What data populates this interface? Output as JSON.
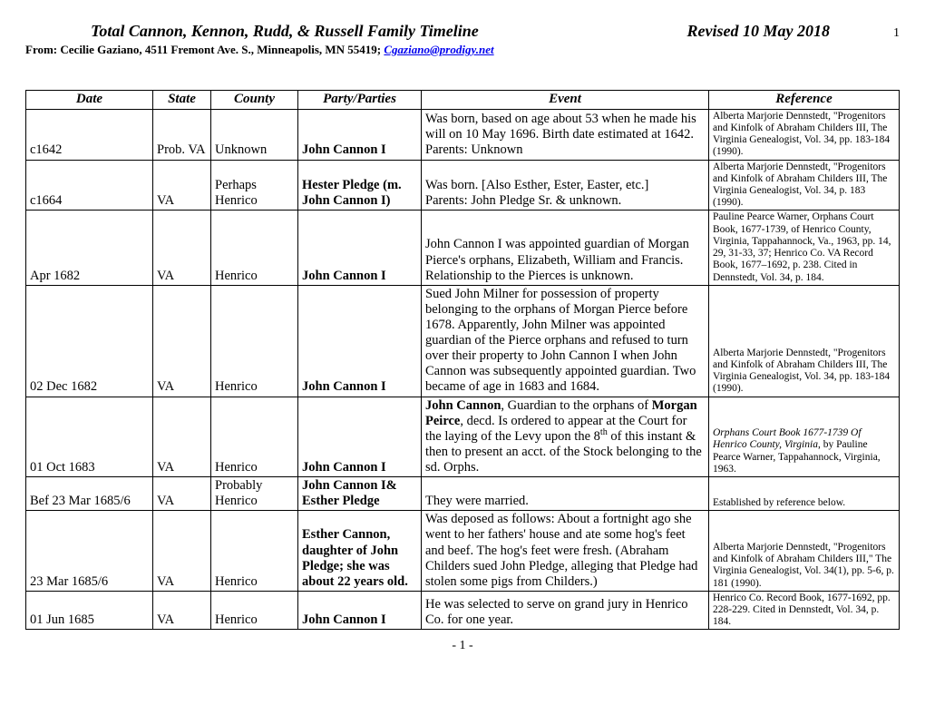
{
  "header": {
    "title": "Total Cannon, Kennon, Rudd, & Russell Family Timeline",
    "revised": "Revised 10 May 2018",
    "page_top": "1",
    "from_prefix": "From:  Cecilie Gaziano, 4511 Fremont Ave. S., Minneapolis, MN 55419; ",
    "from_email": "Cgaziano@prodigy.net"
  },
  "columns": [
    "Date",
    "State",
    "County",
    "Party/Parties",
    "Event",
    "Reference"
  ],
  "rows": [
    {
      "date": "c1642",
      "state": "Prob. VA",
      "county": "Unknown",
      "party_html": "<span class='b'>John Cannon I</span>",
      "event_html": "Was born, based on age about 53 when he made his will on 10 May 1696.  Birth date estimated at 1642.  Parents:  Unknown",
      "ref_html": "Alberta Marjorie Dennstedt, \"Progenitors and Kinfolk of Abraham Childers III, The Virginia Genealogist, Vol. 34, pp. 183-184 (1990)."
    },
    {
      "date": "c1664",
      "state": "VA",
      "county": "Perhaps Henrico",
      "party_html": "<span class='b'>Hester Pledge (m. John Cannon I)</span>",
      "event_html": "Was born. [Also Esther, Ester, Easter, etc.]<br>Parents: John Pledge Sr. &amp; unknown.",
      "ref_html": "Alberta Marjorie Dennstedt, \"Progenitors and Kinfolk of Abraham Childers III, The Virginia Genealogist, Vol. 34, p. 183 (1990)."
    },
    {
      "date": "Apr 1682",
      "state": "VA",
      "county": "Henrico",
      "party_html": "<span class='b'>John Cannon I</span>",
      "event_html": "John Cannon I was appointed guardian of Morgan Pierce's orphans, Elizabeth, William and Francis.  Relationship to the Pierces is unknown.",
      "ref_html": "Pauline Pearce Warner, Orphans Court Book, 1677-1739, of Henrico County, Virginia, Tappahannock, Va., 1963, pp. 14, 29, 31-33, 37; Henrico Co. VA Record Book, 1677–1692, p. 238.  Cited in Dennstedt, Vol. 34, p. 184."
    },
    {
      "date": "02 Dec 1682",
      "state": "VA",
      "county": "Henrico",
      "party_html": "<span class='b'>John Cannon I</span>",
      "event_html": "Sued John Milner for possession of property belonging to the orphans of Morgan Pierce before 1678. Apparently, John Milner was appointed guardian of the Pierce orphans and refused to turn over their property to John Cannon I when John Cannon was subsequently appointed guardian.  Two became of age in 1683 and 1684.",
      "ref_html": "Alberta Marjorie Dennstedt, \"Progenitors and Kinfolk of Abraham Childers III, The Virginia Genealogist, Vol. 34, pp. 183-184 (1990)."
    },
    {
      "date": "01 Oct 1683",
      "state": "VA",
      "county": "Henrico",
      "party_html": "<span class='b'>John Cannon I</span>",
      "event_html": "<span class='b'>John Cannon</span>, Guardian to the orphans of <span class='b'>Morgan Peirce</span>, decd.  Is ordered to appear at the Court for the laying of the Levy upon the 8<span class='sup'>th</span> of this instant &amp; then to present an acct. of the Stock belonging to the sd. Orphs.",
      "ref_html": "<span class='i'>Orphans Court Book 1677-1739 Of Henrico County, Virginia</span>, by Pauline Pearce Warner, Tappahannock, Virginia, 1963."
    },
    {
      "date": "Bef 23 Mar 1685/6",
      "state": "VA",
      "county": "Probably Henrico",
      "party_html": "<span class='b'>John Cannon I&amp; Esther Pledge</span>",
      "event_html": "They were married.",
      "ref_html": "Established by reference below."
    },
    {
      "date": "23 Mar 1685/6",
      "state": "VA",
      "county": "Henrico",
      "party_html": "<span class='b'>Esther Cannon, daughter of John Pledge; she was about 22 years old.</span>",
      "event_html": "Was deposed as follows: About a fortnight ago she went to her fathers' house and ate some hog's feet and beef.  The hog's feet were fresh. (Abraham Childers sued John Pledge, alleging that Pledge had stolen some pigs from Childers.)",
      "ref_html": "Alberta Marjorie Dennstedt, \"Progenitors and Kinfolk of Abraham Childers III,\" The Virginia Genealogist, Vol. 34(1), pp. 5-6, p. 181 (1990)."
    },
    {
      "date": "01 Jun 1685",
      "state": "VA",
      "county": "Henrico",
      "party_html": "<span class='b'>John Cannon I</span>",
      "event_html": "He was selected to serve on grand jury in Henrico Co. for one year.",
      "ref_html": "Henrico Co. Record Book, 1677-1692, pp. 228-229.  Cited in Dennstedt, Vol. 34, p. 184."
    }
  ],
  "footer": "- 1 -"
}
